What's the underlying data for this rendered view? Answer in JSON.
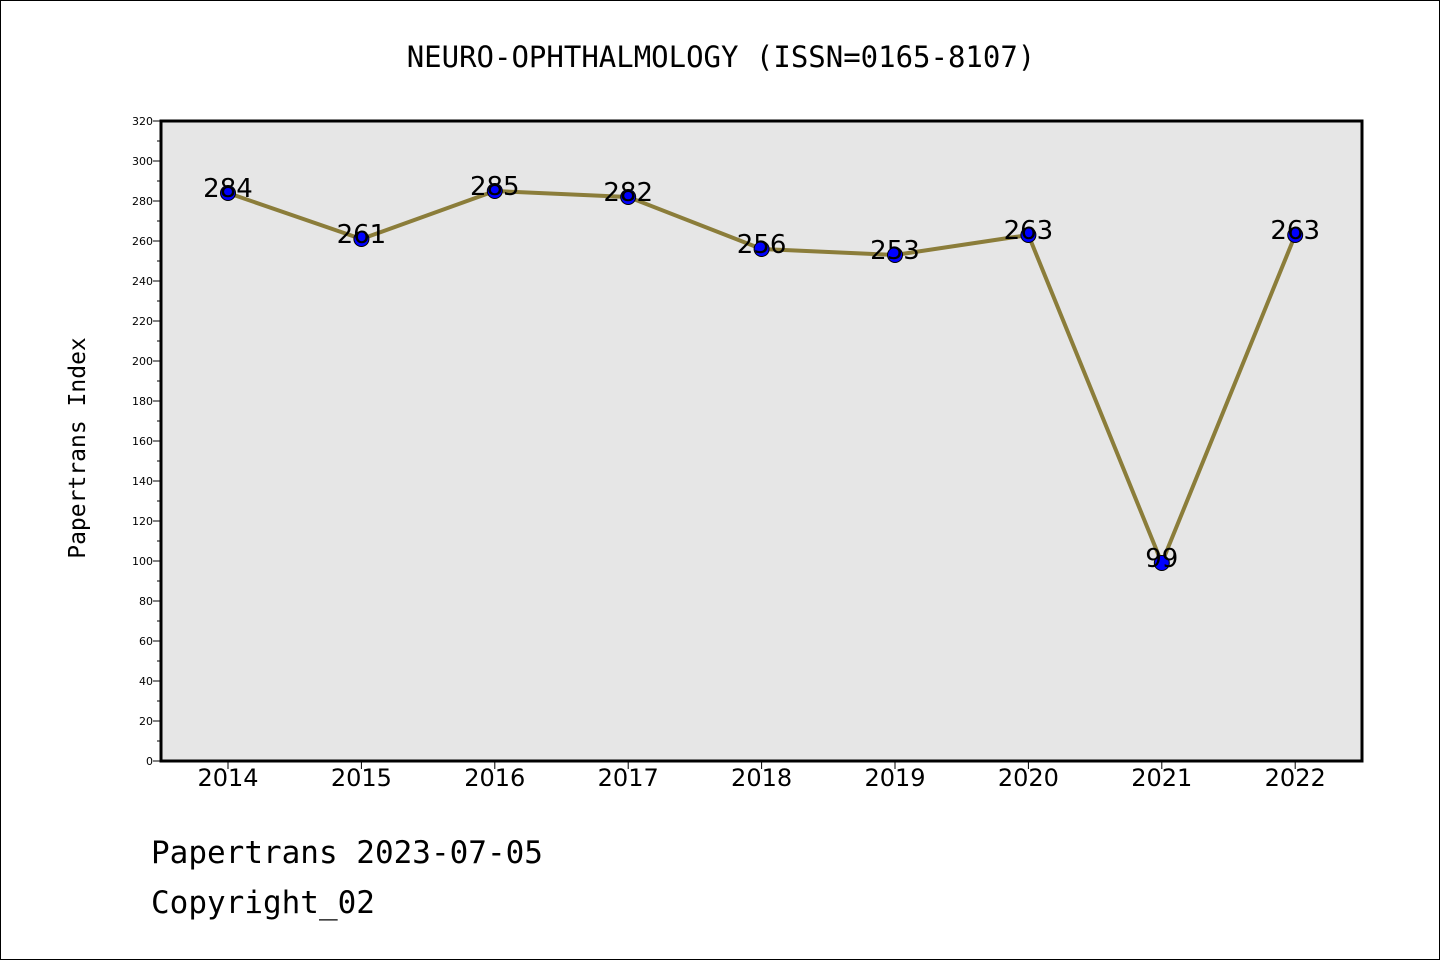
{
  "chart_data": {
    "type": "line",
    "title": "NEURO-OPHTHALMOLOGY (ISSN=0165-8107)",
    "xlabel": "",
    "ylabel": "Papertrans Index",
    "categories": [
      "2014",
      "2015",
      "2016",
      "2017",
      "2018",
      "2019",
      "2020",
      "2021",
      "2022"
    ],
    "values": [
      284,
      261,
      285,
      282,
      256,
      253,
      263,
      99,
      263
    ],
    "data_labels": [
      "284",
      "261",
      "285",
      "282",
      "256",
      "253",
      "263",
      "99",
      "263"
    ],
    "ylim": [
      0,
      320
    ],
    "yticks": [
      0,
      20,
      40,
      60,
      80,
      100,
      120,
      140,
      160,
      180,
      200,
      220,
      240,
      260,
      280,
      300,
      320
    ],
    "grid": false,
    "legend": "none",
    "colors": {
      "line": "#8b7d3a",
      "marker": "#0000ff",
      "plot_background": "#e6e6e6"
    }
  },
  "footer": {
    "line1": "Papertrans 2023-07-05",
    "line2": "Copyright_02"
  }
}
